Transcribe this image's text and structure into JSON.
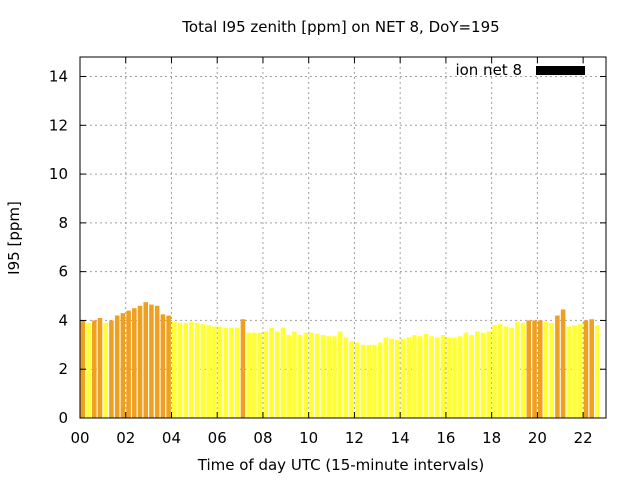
{
  "chart_data": {
    "type": "bar",
    "title": "Total I95 zenith [ppm] on NET 8, DoY=195",
    "xlabel": "Time of day UTC (15-minute intervals)",
    "ylabel": "I95 [ppm]",
    "xlim": [
      0,
      23
    ],
    "ylim": [
      0,
      14.8
    ],
    "x_ticks": [
      "00",
      "02",
      "04",
      "06",
      "08",
      "10",
      "12",
      "14",
      "16",
      "18",
      "20",
      "22"
    ],
    "y_ticks": [
      "0",
      "2",
      "4",
      "6",
      "8",
      "10",
      "12",
      "14"
    ],
    "grid": true,
    "legend_position": "top-right",
    "series": [
      {
        "name": "ion net 8",
        "color": "#000000",
        "interval_hours": 0.25,
        "values": [
          4.0,
          3.9,
          4.0,
          4.1,
          3.9,
          4.0,
          4.2,
          4.3,
          4.4,
          4.5,
          4.6,
          4.75,
          4.65,
          4.6,
          4.25,
          4.2,
          3.95,
          3.9,
          3.9,
          3.95,
          3.9,
          3.85,
          3.8,
          3.75,
          3.75,
          3.7,
          3.7,
          3.7,
          4.05,
          3.5,
          3.5,
          3.5,
          3.55,
          3.7,
          3.55,
          3.7,
          3.4,
          3.55,
          3.4,
          3.5,
          3.5,
          3.45,
          3.4,
          3.35,
          3.35,
          3.55,
          3.3,
          3.15,
          3.1,
          3.0,
          3.0,
          3.0,
          3.1,
          3.3,
          3.25,
          3.2,
          3.25,
          3.3,
          3.4,
          3.35,
          3.45,
          3.35,
          3.3,
          3.4,
          3.3,
          3.3,
          3.35,
          3.5,
          3.4,
          3.55,
          3.5,
          3.55,
          3.8,
          3.85,
          3.75,
          3.7,
          3.95,
          3.9,
          4.0,
          4.0,
          4.0,
          3.95,
          3.9,
          4.2,
          4.45,
          3.75,
          3.8,
          3.85,
          4.0,
          4.05,
          3.8
        ],
        "bar_colors": [
          "#f0a020",
          "#ffff33",
          "#f0a020",
          "#f0a020",
          "#ffff33",
          "#f0a020",
          "#f0a020",
          "#f0a020",
          "#f0a020",
          "#f0a020",
          "#f0a020",
          "#f0a020",
          "#f0a020",
          "#f0a020",
          "#f0a020",
          "#f0a020",
          "#ffff33",
          "#ffff33",
          "#ffff33",
          "#ffff33",
          "#ffff33",
          "#ffff33",
          "#ffff33",
          "#ffff33",
          "#ffff33",
          "#ffff33",
          "#ffff33",
          "#ffff33",
          "#f0a020",
          "#ffff33",
          "#ffff33",
          "#ffff33",
          "#ffff33",
          "#ffff33",
          "#ffff33",
          "#ffff33",
          "#ffff33",
          "#ffff33",
          "#ffff33",
          "#ffff33",
          "#ffff33",
          "#ffff33",
          "#ffff33",
          "#ffff33",
          "#ffff33",
          "#ffff33",
          "#ffff33",
          "#ffff33",
          "#ffff33",
          "#ffff33",
          "#ffff33",
          "#ffff33",
          "#ffff33",
          "#ffff33",
          "#ffff33",
          "#ffff33",
          "#ffff33",
          "#ffff33",
          "#ffff33",
          "#ffff33",
          "#ffff33",
          "#ffff33",
          "#ffff33",
          "#ffff33",
          "#ffff33",
          "#ffff33",
          "#ffff33",
          "#ffff33",
          "#ffff33",
          "#ffff33",
          "#ffff33",
          "#ffff33",
          "#ffff33",
          "#ffff33",
          "#ffff33",
          "#ffff33",
          "#ffff33",
          "#ffff33",
          "#f0a020",
          "#f0a020",
          "#f0a020",
          "#ffff33",
          "#ffff33",
          "#f0a020",
          "#f0a020",
          "#ffff33",
          "#ffff33",
          "#ffff33",
          "#f0a020",
          "#f0a020",
          "#ffff33"
        ]
      }
    ]
  }
}
